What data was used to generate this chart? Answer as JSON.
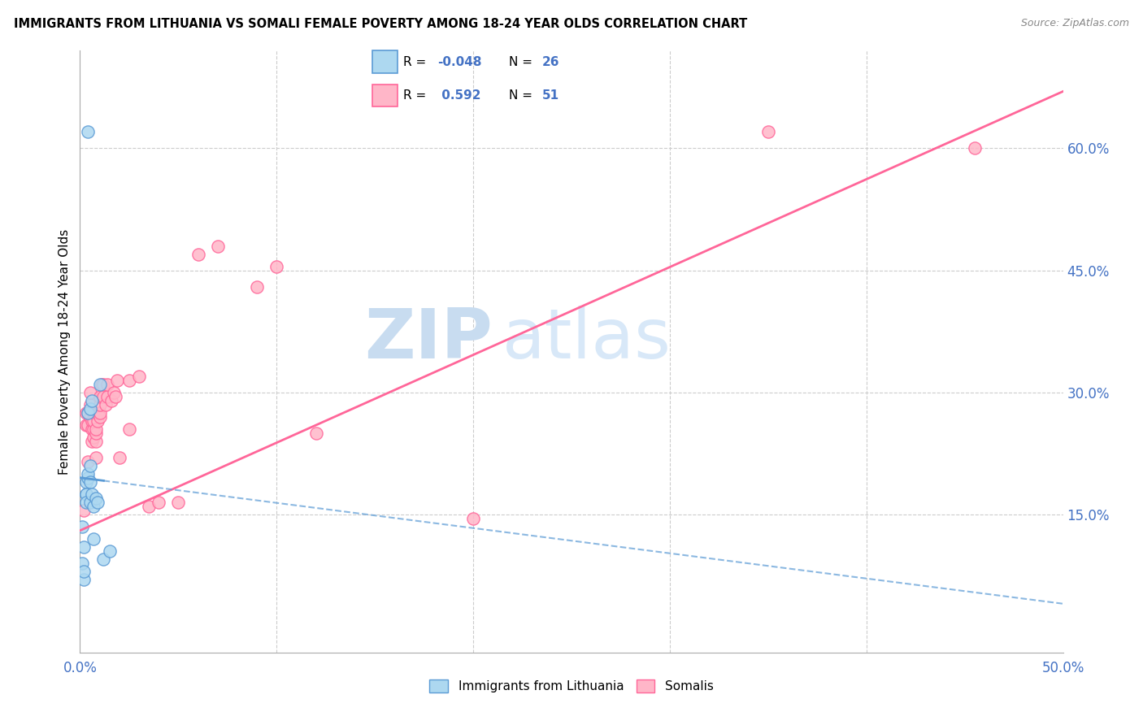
{
  "title": "IMMIGRANTS FROM LITHUANIA VS SOMALI FEMALE POVERTY AMONG 18-24 YEAR OLDS CORRELATION CHART",
  "source": "Source: ZipAtlas.com",
  "ylabel": "Female Poverty Among 18-24 Year Olds",
  "xlim": [
    0.0,
    0.5
  ],
  "ylim": [
    -0.02,
    0.72
  ],
  "xtick_vals": [
    0.0,
    0.1,
    0.2,
    0.3,
    0.4,
    0.5
  ],
  "xtick_labels": [
    "0.0%",
    "",
    "",
    "",
    "",
    "50.0%"
  ],
  "ytick_right_vals": [
    0.15,
    0.3,
    0.45,
    0.6
  ],
  "ytick_right_labels": [
    "15.0%",
    "30.0%",
    "45.0%",
    "60.0%"
  ],
  "blue_color": "#ADD8F0",
  "pink_color": "#FFB6C8",
  "blue_edge_color": "#5B9BD5",
  "pink_edge_color": "#FF6699",
  "blue_line_color": "#5B9BD5",
  "pink_line_color": "#FF6699",
  "watermark_zip": "ZIP",
  "watermark_atlas": "atlas",
  "blue_scatter_x": [
    0.001,
    0.001,
    0.002,
    0.002,
    0.002,
    0.003,
    0.003,
    0.003,
    0.003,
    0.004,
    0.004,
    0.004,
    0.005,
    0.005,
    0.005,
    0.005,
    0.006,
    0.006,
    0.007,
    0.007,
    0.008,
    0.009,
    0.01,
    0.012,
    0.015,
    0.004
  ],
  "blue_scatter_y": [
    0.135,
    0.09,
    0.07,
    0.08,
    0.11,
    0.175,
    0.19,
    0.175,
    0.165,
    0.195,
    0.2,
    0.275,
    0.19,
    0.21,
    0.28,
    0.165,
    0.29,
    0.175,
    0.16,
    0.12,
    0.17,
    0.165,
    0.31,
    0.095,
    0.105,
    0.62
  ],
  "pink_scatter_x": [
    0.002,
    0.003,
    0.003,
    0.004,
    0.004,
    0.004,
    0.005,
    0.005,
    0.005,
    0.006,
    0.006,
    0.006,
    0.007,
    0.007,
    0.007,
    0.007,
    0.008,
    0.008,
    0.008,
    0.008,
    0.009,
    0.009,
    0.01,
    0.01,
    0.01,
    0.01,
    0.011,
    0.012,
    0.012,
    0.013,
    0.014,
    0.014,
    0.016,
    0.017,
    0.018,
    0.019,
    0.02,
    0.025,
    0.025,
    0.03,
    0.035,
    0.04,
    0.05,
    0.06,
    0.07,
    0.09,
    0.1,
    0.12,
    0.2,
    0.35,
    0.455
  ],
  "pink_scatter_y": [
    0.155,
    0.26,
    0.275,
    0.215,
    0.26,
    0.275,
    0.27,
    0.285,
    0.3,
    0.24,
    0.255,
    0.265,
    0.245,
    0.255,
    0.265,
    0.275,
    0.22,
    0.24,
    0.25,
    0.255,
    0.265,
    0.275,
    0.27,
    0.275,
    0.285,
    0.295,
    0.31,
    0.295,
    0.31,
    0.285,
    0.295,
    0.31,
    0.29,
    0.3,
    0.295,
    0.315,
    0.22,
    0.315,
    0.255,
    0.32,
    0.16,
    0.165,
    0.165,
    0.47,
    0.48,
    0.43,
    0.455,
    0.25,
    0.145,
    0.62,
    0.6
  ],
  "blue_trendline_x": [
    0.0,
    0.5
  ],
  "blue_trendline_y": [
    0.195,
    0.04
  ],
  "pink_trendline_x": [
    0.0,
    0.5
  ],
  "pink_trendline_y": [
    0.13,
    0.67
  ]
}
